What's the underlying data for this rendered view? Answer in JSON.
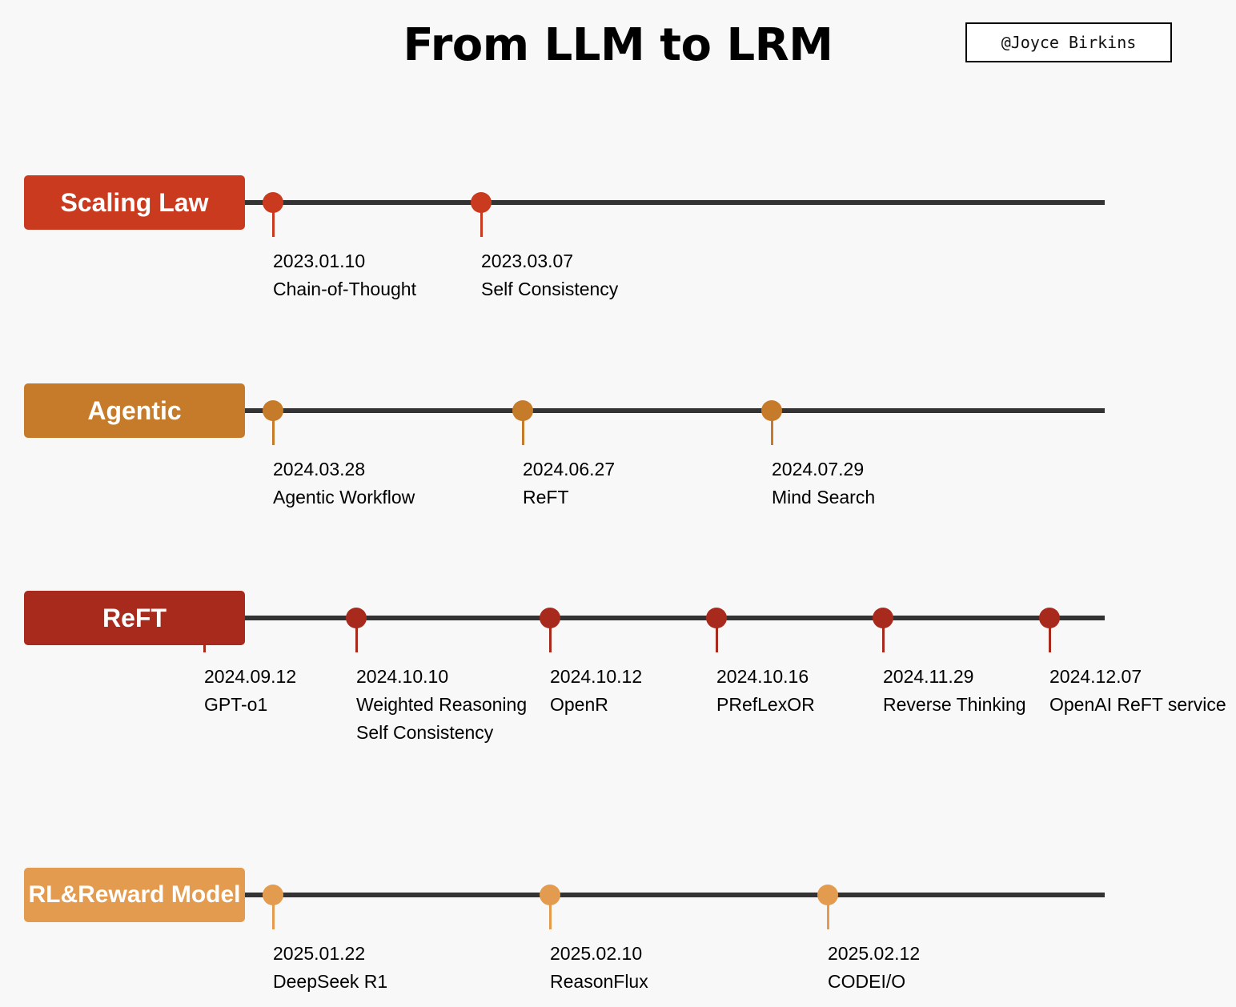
{
  "title": "From LLM to LRM",
  "author": "@Joyce Birkins",
  "tracks": [
    {
      "label": "Scaling Law",
      "color": "#c93a1f",
      "events": [
        {
          "date": "2023.01.10",
          "name": "Chain-of-Thought"
        },
        {
          "date": "2023.03.07",
          "name": "Self Consistency"
        }
      ]
    },
    {
      "label": "Agentic",
      "color": "#c67b2b",
      "events": [
        {
          "date": "2024.03.28",
          "name": "Agentic Workflow"
        },
        {
          "date": "2024.06.27",
          "name": "ReFT"
        },
        {
          "date": "2024.07.29",
          "name": "Mind Search"
        }
      ]
    },
    {
      "label": "ReFT",
      "color": "#a82a1c",
      "events": [
        {
          "date": "2024.09.12",
          "name": "GPT-o1"
        },
        {
          "date": "2024.10.10",
          "name": "Weighted Reasoning",
          "name2": "Self Consistency"
        },
        {
          "date": "2024.10.12",
          "name": "OpenR"
        },
        {
          "date": "2024.10.16",
          "name": "PRefLexOR"
        },
        {
          "date": "2024.11.29",
          "name": "Reverse Thinking"
        },
        {
          "date": "2024.12.07",
          "name": "OpenAI ReFT service"
        }
      ]
    },
    {
      "label": "RL&Reward Model",
      "color": "#e39c4f",
      "events": [
        {
          "date": "2025.01.22",
          "name": "DeepSeek R1"
        },
        {
          "date": "2025.02.10",
          "name": "ReasonFlux"
        },
        {
          "date": "2025.02.12",
          "name": "CODEI/O"
        }
      ]
    }
  ]
}
